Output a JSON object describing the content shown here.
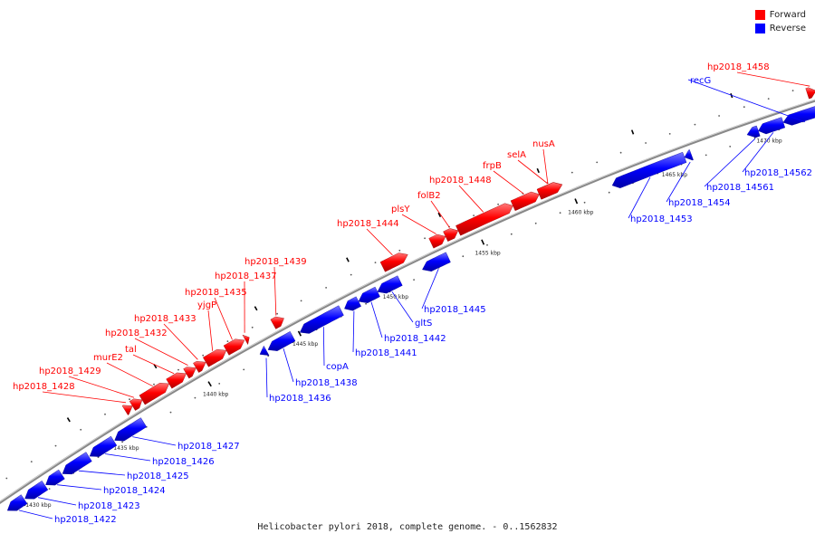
{
  "caption": "Helicobacter pylori 2018, complete genome. - 0..1562832",
  "legend": [
    {
      "label": "Forward",
      "color": "#ff0000"
    },
    {
      "label": "Reverse",
      "color": "#0000ff"
    }
  ],
  "colors": {
    "forward": "#ff0000",
    "reverse": "#0000ff",
    "backbone": "#888888",
    "tick": "#000000"
  },
  "ticks": [
    {
      "label": "1430 kbp"
    },
    {
      "label": "1435 kbp"
    },
    {
      "label": "1440 kbp"
    },
    {
      "label": "1445 kbp"
    },
    {
      "label": "1450 kbp"
    },
    {
      "label": "1455 kbp"
    },
    {
      "label": "1460 kbp"
    },
    {
      "label": "1465 kbp"
    },
    {
      "label": "1470 kbp"
    }
  ],
  "features": [
    {
      "label": "hp2018_1422",
      "strand": "reverse"
    },
    {
      "label": "hp2018_1423",
      "strand": "reverse"
    },
    {
      "label": "hp2018_1424",
      "strand": "reverse"
    },
    {
      "label": "hp2018_1425",
      "strand": "reverse"
    },
    {
      "label": "hp2018_1426",
      "strand": "reverse"
    },
    {
      "label": "hp2018_1427",
      "strand": "reverse"
    },
    {
      "label": "hp2018_1428",
      "strand": "forward"
    },
    {
      "label": "hp2018_1429",
      "strand": "forward"
    },
    {
      "label": "murE2",
      "strand": "forward"
    },
    {
      "label": "tal",
      "strand": "forward"
    },
    {
      "label": "hp2018_1432",
      "strand": "forward"
    },
    {
      "label": "hp2018_1433",
      "strand": "forward"
    },
    {
      "label": "yjgP",
      "strand": "forward"
    },
    {
      "label": "hp2018_1435",
      "strand": "forward"
    },
    {
      "label": "hp2018_1436",
      "strand": "reverse"
    },
    {
      "label": "hp2018_1437",
      "strand": "forward"
    },
    {
      "label": "hp2018_1438",
      "strand": "reverse"
    },
    {
      "label": "hp2018_1439",
      "strand": "forward"
    },
    {
      "label": "copA",
      "strand": "reverse"
    },
    {
      "label": "hp2018_1441",
      "strand": "reverse"
    },
    {
      "label": "hp2018_1442",
      "strand": "reverse"
    },
    {
      "label": "gltS",
      "strand": "reverse"
    },
    {
      "label": "hp2018_1444",
      "strand": "forward"
    },
    {
      "label": "hp2018_1445",
      "strand": "reverse"
    },
    {
      "label": "plsY",
      "strand": "forward"
    },
    {
      "label": "folB2",
      "strand": "forward"
    },
    {
      "label": "hp2018_1448",
      "strand": "forward"
    },
    {
      "label": "frpB",
      "strand": "forward"
    },
    {
      "label": "selA",
      "strand": "forward"
    },
    {
      "label": "nusA",
      "strand": "forward"
    },
    {
      "label": "hp2018_1453",
      "strand": "reverse"
    },
    {
      "label": "hp2018_1454",
      "strand": "reverse"
    },
    {
      "label": "hp2018_14561",
      "strand": "reverse"
    },
    {
      "label": "hp2018_14562",
      "strand": "reverse"
    },
    {
      "label": "recG",
      "strand": "reverse"
    },
    {
      "label": "hp2018_1458",
      "strand": "forward"
    }
  ]
}
